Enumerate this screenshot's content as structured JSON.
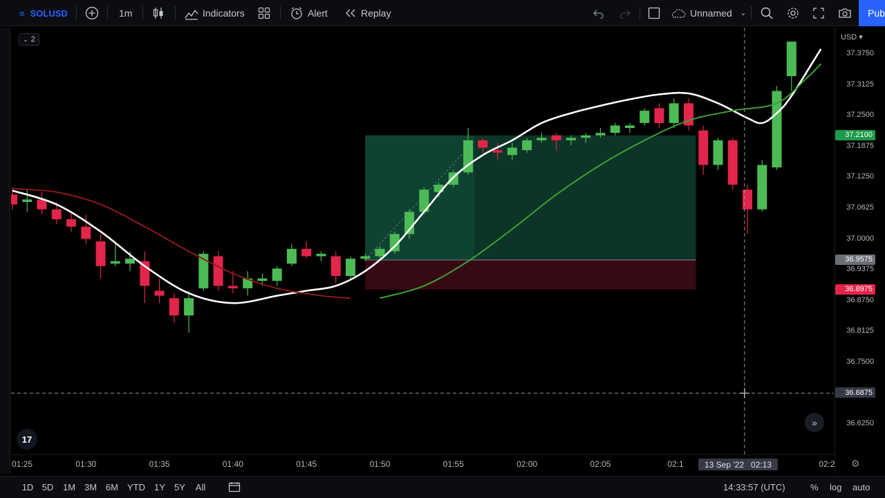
{
  "toolbar": {
    "symbol": "SOLUSD",
    "interval": "1m",
    "indicators_label": "Indicators",
    "alert_label": "Alert",
    "replay_label": "Replay",
    "layout_name": "Unnamed",
    "publish_label": "Pub"
  },
  "legend_toggle_count": "2",
  "logo_text": "17",
  "price_axis": {
    "currency": "USD",
    "ticks": [
      "37.3750",
      "37.3125",
      "37.2500",
      "37.1875",
      "37.1250",
      "37.0625",
      "37.0000",
      "36.9375",
      "36.8750",
      "36.8125",
      "36.7500",
      "36.6250"
    ],
    "tags": {
      "target": "37.2100",
      "entry": "36.9575",
      "stop": "36.8975",
      "crosshair": "36.6875"
    }
  },
  "time_axis": {
    "ticks": [
      "01:25",
      "01:30",
      "01:35",
      "01:40",
      "01:45",
      "01:50",
      "01:55",
      "02:00",
      "02:05",
      "02:1",
      "02:2"
    ],
    "crosshair_date": "13 Sep '22",
    "crosshair_time": "02:13"
  },
  "bottom": {
    "ranges": [
      "1D",
      "5D",
      "1M",
      "3M",
      "6M",
      "YTD",
      "1Y",
      "5Y",
      "All"
    ],
    "clock": "14:33:57 (UTC)",
    "percent_label": "%",
    "log_label": "log",
    "auto_label": "auto"
  },
  "chart_data": {
    "type": "candlestick",
    "symbol": "SOLUSD",
    "interval": "1m",
    "ylim": [
      36.58,
      37.42
    ],
    "x_start_minute": 85,
    "candles": [
      {
        "t": 85.0,
        "o": 37.09,
        "h": 37.105,
        "l": 37.06,
        "c": 37.07
      },
      {
        "t": 86.0,
        "o": 37.075,
        "h": 37.1,
        "l": 37.055,
        "c": 37.08
      },
      {
        "t": 87.0,
        "o": 37.08,
        "h": 37.095,
        "l": 37.05,
        "c": 37.06
      },
      {
        "t": 88.0,
        "o": 37.06,
        "h": 37.075,
        "l": 37.03,
        "c": 37.04
      },
      {
        "t": 89.0,
        "o": 37.04,
        "h": 37.055,
        "l": 37.015,
        "c": 37.025
      },
      {
        "t": 90.0,
        "o": 37.025,
        "h": 37.05,
        "l": 36.99,
        "c": 37.0
      },
      {
        "t": 91.0,
        "o": 36.995,
        "h": 37.01,
        "l": 36.92,
        "c": 36.945
      },
      {
        "t": 92.0,
        "o": 36.95,
        "h": 36.99,
        "l": 36.945,
        "c": 36.955
      },
      {
        "t": 93.0,
        "o": 36.95,
        "h": 36.975,
        "l": 36.935,
        "c": 36.96
      },
      {
        "t": 94.0,
        "o": 36.955,
        "h": 36.975,
        "l": 36.87,
        "c": 36.905
      },
      {
        "t": 95.0,
        "o": 36.895,
        "h": 36.92,
        "l": 36.87,
        "c": 36.885
      },
      {
        "t": 96.0,
        "o": 36.88,
        "h": 36.89,
        "l": 36.83,
        "c": 36.845
      },
      {
        "t": 97.0,
        "o": 36.845,
        "h": 36.895,
        "l": 36.81,
        "c": 36.88
      },
      {
        "t": 98.0,
        "o": 36.9,
        "h": 36.975,
        "l": 36.895,
        "c": 36.97
      },
      {
        "t": 99.0,
        "o": 36.965,
        "h": 36.975,
        "l": 36.895,
        "c": 36.905
      },
      {
        "t": 100.0,
        "o": 36.905,
        "h": 36.935,
        "l": 36.89,
        "c": 36.9
      },
      {
        "t": 101.0,
        "o": 36.9,
        "h": 36.935,
        "l": 36.885,
        "c": 36.92
      },
      {
        "t": 102.0,
        "o": 36.915,
        "h": 36.93,
        "l": 36.905,
        "c": 36.92
      },
      {
        "t": 103.0,
        "o": 36.915,
        "h": 36.945,
        "l": 36.905,
        "c": 36.94
      },
      {
        "t": 104.0,
        "o": 36.95,
        "h": 36.99,
        "l": 36.945,
        "c": 36.98
      },
      {
        "t": 105.0,
        "o": 36.98,
        "h": 36.995,
        "l": 36.96,
        "c": 36.965
      },
      {
        "t": 106.0,
        "o": 36.965,
        "h": 36.975,
        "l": 36.955,
        "c": 36.97
      },
      {
        "t": 107.0,
        "o": 36.965,
        "h": 36.975,
        "l": 36.91,
        "c": 36.925
      },
      {
        "t": 108.0,
        "o": 36.925,
        "h": 36.965,
        "l": 36.92,
        "c": 36.96
      },
      {
        "t": 109.0,
        "o": 36.96,
        "h": 36.97,
        "l": 36.955,
        "c": 36.965
      },
      {
        "t": 110.0,
        "o": 36.965,
        "h": 36.985,
        "l": 36.96,
        "c": 36.98
      },
      {
        "t": 111.0,
        "o": 36.975,
        "h": 37.015,
        "l": 36.97,
        "c": 37.01
      },
      {
        "t": 112.0,
        "o": 37.01,
        "h": 37.06,
        "l": 37.0,
        "c": 37.055
      },
      {
        "t": 113.0,
        "o": 37.055,
        "h": 37.105,
        "l": 37.05,
        "c": 37.1
      },
      {
        "t": 114.0,
        "o": 37.095,
        "h": 37.115,
        "l": 37.085,
        "c": 37.11
      },
      {
        "t": 115.0,
        "o": 37.11,
        "h": 37.14,
        "l": 37.105,
        "c": 37.135
      },
      {
        "t": 116.0,
        "o": 37.135,
        "h": 37.225,
        "l": 37.13,
        "c": 37.2
      },
      {
        "t": 117.0,
        "o": 37.2,
        "h": 37.205,
        "l": 37.175,
        "c": 37.185
      },
      {
        "t": 118.0,
        "o": 37.18,
        "h": 37.195,
        "l": 37.16,
        "c": 37.175
      },
      {
        "t": 119.0,
        "o": 37.17,
        "h": 37.195,
        "l": 37.16,
        "c": 37.185
      },
      {
        "t": 120.0,
        "o": 37.18,
        "h": 37.205,
        "l": 37.175,
        "c": 37.2
      },
      {
        "t": 121.0,
        "o": 37.2,
        "h": 37.215,
        "l": 37.195,
        "c": 37.205
      },
      {
        "t": 122.0,
        "o": 37.21,
        "h": 37.215,
        "l": 37.18,
        "c": 37.2
      },
      {
        "t": 123.0,
        "o": 37.2,
        "h": 37.21,
        "l": 37.19,
        "c": 37.205
      },
      {
        "t": 124.0,
        "o": 37.205,
        "h": 37.215,
        "l": 37.195,
        "c": 37.21
      },
      {
        "t": 125.0,
        "o": 37.21,
        "h": 37.225,
        "l": 37.205,
        "c": 37.215
      },
      {
        "t": 126.0,
        "o": 37.215,
        "h": 37.235,
        "l": 37.21,
        "c": 37.23
      },
      {
        "t": 127.0,
        "o": 37.225,
        "h": 37.235,
        "l": 37.215,
        "c": 37.23
      },
      {
        "t": 128.0,
        "o": 37.235,
        "h": 37.265,
        "l": 37.23,
        "c": 37.26
      },
      {
        "t": 129.0,
        "o": 37.265,
        "h": 37.275,
        "l": 37.225,
        "c": 37.235
      },
      {
        "t": 130.0,
        "o": 37.235,
        "h": 37.285,
        "l": 37.225,
        "c": 37.275
      },
      {
        "t": 131.0,
        "o": 37.275,
        "h": 37.285,
        "l": 37.22,
        "c": 37.23
      },
      {
        "t": 132.0,
        "o": 37.22,
        "h": 37.23,
        "l": 37.13,
        "c": 37.15
      },
      {
        "t": 133.0,
        "o": 37.15,
        "h": 37.205,
        "l": 37.14,
        "c": 37.2
      },
      {
        "t": 134.0,
        "o": 37.2,
        "h": 37.205,
        "l": 37.1,
        "c": 37.11
      },
      {
        "t": 135.0,
        "o": 37.1,
        "h": 37.11,
        "l": 37.01,
        "c": 37.06
      },
      {
        "t": 136.0,
        "o": 37.06,
        "h": 37.16,
        "l": 37.055,
        "c": 37.15
      },
      {
        "t": 137.0,
        "o": 37.145,
        "h": 37.31,
        "l": 37.14,
        "c": 37.3
      },
      {
        "t": 138.0,
        "o": 37.33,
        "h": 37.4,
        "l": 37.3,
        "c": 37.4
      }
    ],
    "overlays": [
      {
        "id": "white-ma",
        "color": "#ffffff",
        "points": [
          [
            85,
            37.098
          ],
          [
            88,
            37.07
          ],
          [
            91,
            37.015
          ],
          [
            94,
            36.945
          ],
          [
            97,
            36.89
          ],
          [
            100,
            36.87
          ],
          [
            103,
            36.885
          ],
          [
            105,
            36.895
          ],
          [
            107,
            36.905
          ],
          [
            109,
            36.935
          ],
          [
            111,
            36.985
          ],
          [
            113,
            37.055
          ],
          [
            115,
            37.125
          ],
          [
            117,
            37.17
          ],
          [
            119,
            37.2
          ],
          [
            121,
            37.235
          ],
          [
            123,
            37.255
          ],
          [
            125,
            37.27
          ],
          [
            127,
            37.283
          ],
          [
            129,
            37.293
          ],
          [
            131,
            37.295
          ],
          [
            133,
            37.275
          ],
          [
            135,
            37.245
          ],
          [
            136,
            37.235
          ],
          [
            137,
            37.255
          ],
          [
            138,
            37.29
          ],
          [
            140,
            37.385
          ]
        ]
      },
      {
        "id": "red-ma",
        "color": "#8b1a1a",
        "points": [
          [
            85,
            37.102
          ],
          [
            88,
            37.095
          ],
          [
            91,
            37.07
          ],
          [
            94,
            37.025
          ],
          [
            97,
            36.975
          ],
          [
            100,
            36.93
          ],
          [
            103,
            36.9
          ],
          [
            106,
            36.885
          ],
          [
            108,
            36.88
          ]
        ]
      },
      {
        "id": "green-ma",
        "color": "#3fa034",
        "points": [
          [
            110,
            36.88
          ],
          [
            113,
            36.905
          ],
          [
            116,
            36.955
          ],
          [
            119,
            37.02
          ],
          [
            122,
            37.09
          ],
          [
            125,
            37.15
          ],
          [
            128,
            37.2
          ],
          [
            131,
            37.24
          ],
          [
            134,
            37.26
          ],
          [
            137,
            37.275
          ],
          [
            139,
            37.325
          ],
          [
            140,
            37.355
          ]
        ]
      }
    ],
    "position_tool": {
      "start": 109.0,
      "end": 131.5,
      "entry": 36.9575,
      "target": 37.21,
      "stop": 36.8975
    },
    "crosshair": {
      "t": 134.8,
      "price": 36.6875
    }
  },
  "colors": {
    "up": "#4cba55",
    "down": "#e2254a",
    "target_zone": "#0e3d2e",
    "stop_zone": "#3a0a14",
    "accent": "#2962ff"
  }
}
